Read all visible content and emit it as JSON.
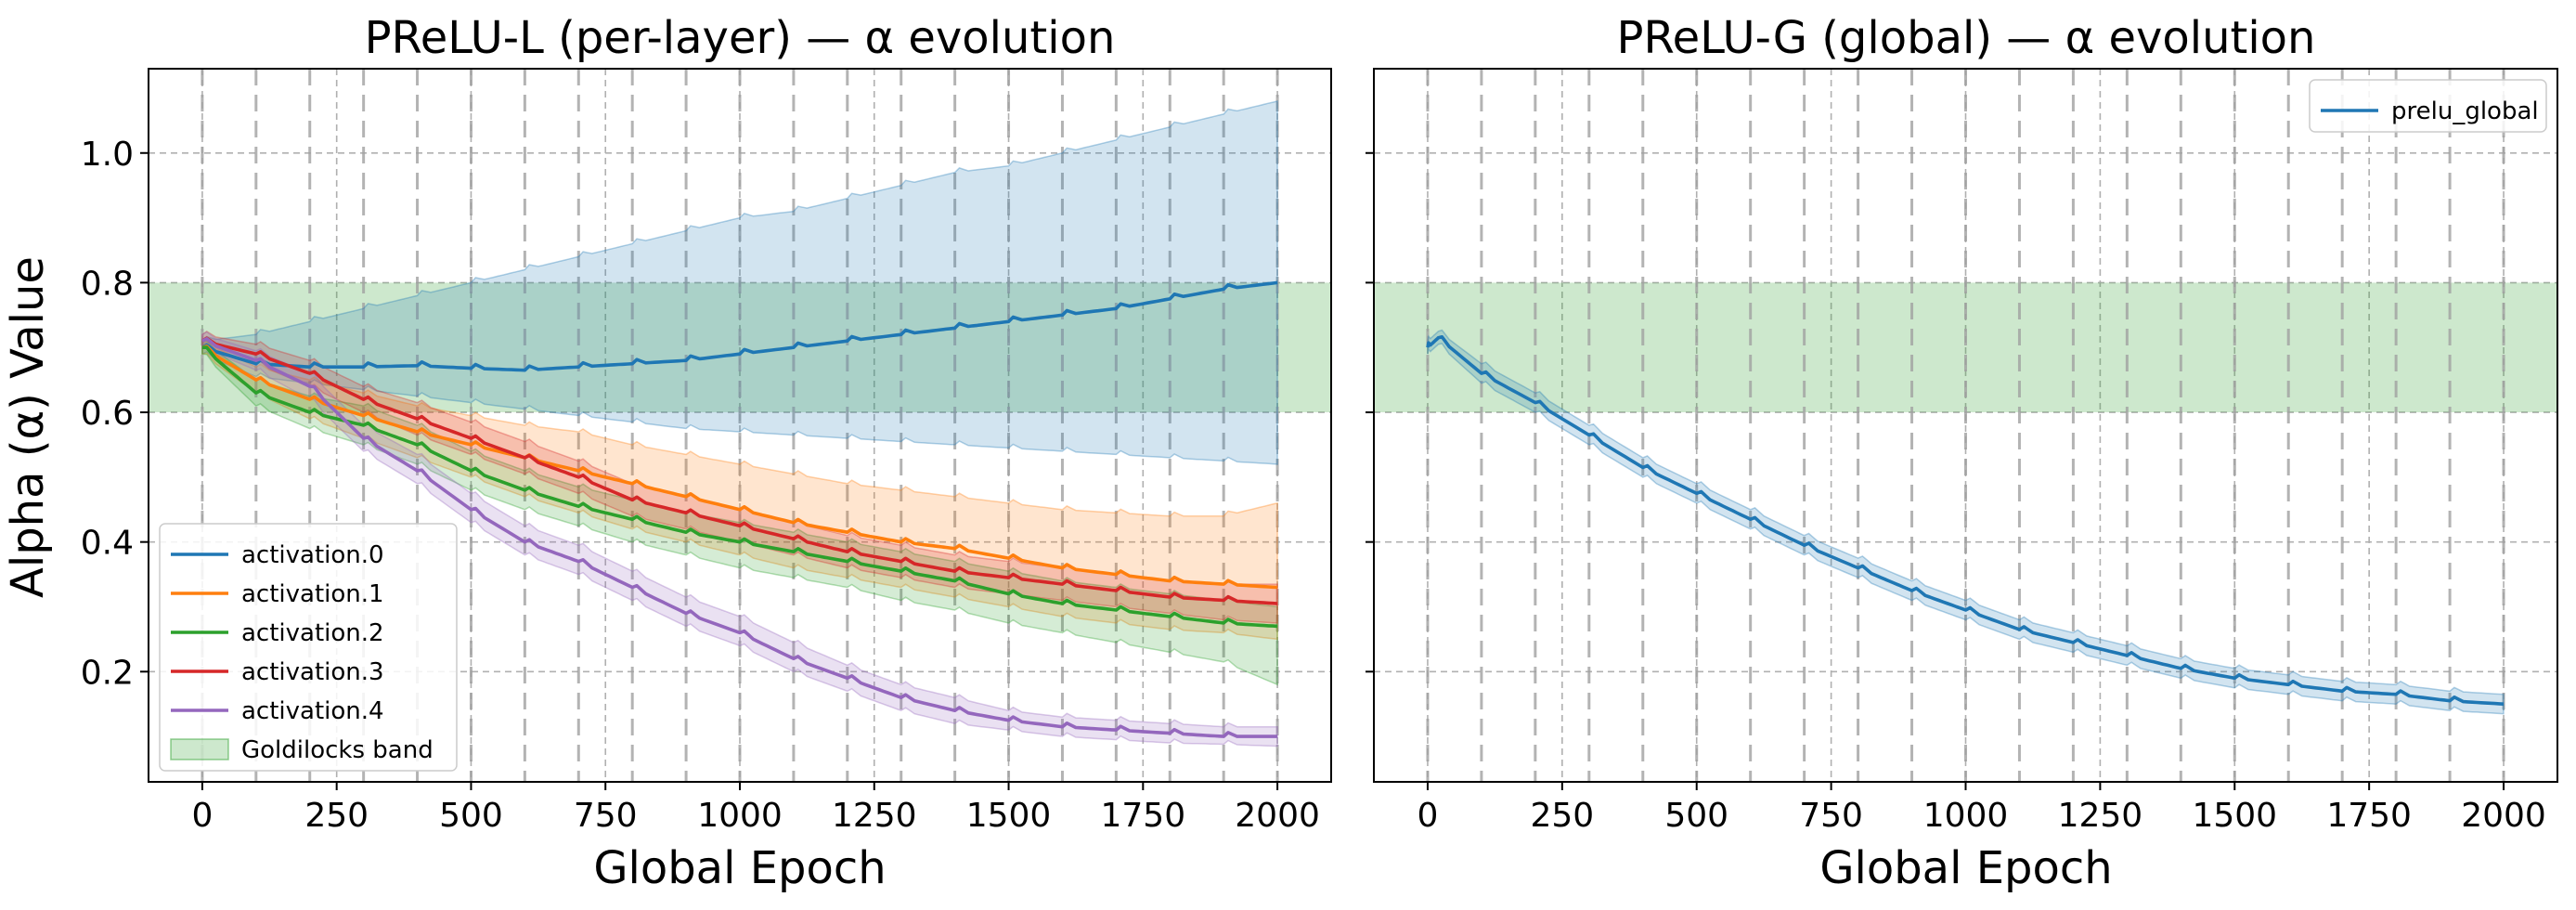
{
  "y_label": "Alpha (α) Value",
  "colors": {
    "activation.0": "#1f77b4",
    "activation.1": "#ff7f0e",
    "activation.2": "#2ca02c",
    "activation.3": "#d62728",
    "activation.4": "#9467bd",
    "band": "#2ca02c"
  },
  "chart_data": [
    {
      "type": "line",
      "title": "PReLU-L (per-layer) — α evolution",
      "xlabel": "Global Epoch",
      "ylabel": "Alpha (α) Value",
      "xlim": [
        -100,
        2100
      ],
      "ylim": [
        0.03,
        1.13
      ],
      "xticks": [
        0,
        250,
        500,
        750,
        1000,
        1250,
        1500,
        1750,
        2000
      ],
      "yticks": [
        0.2,
        0.4,
        0.6,
        0.8,
        1.0
      ],
      "ytick_labels": [
        "0.2",
        "0.4",
        "0.6",
        "0.8",
        "1.0"
      ],
      "grid": true,
      "legend_position": "lower-left",
      "legend": [
        "activation.0",
        "activation.1",
        "activation.2",
        "activation.3",
        "activation.4",
        "Goldilocks band"
      ],
      "goldilocks_band": [
        0.6,
        0.8
      ],
      "stage_boundaries": [
        0,
        100,
        200,
        300,
        400,
        500,
        600,
        700,
        800,
        900,
        1000,
        1100,
        1200,
        1300,
        1400,
        1500,
        1600,
        1700,
        1800,
        1900,
        2000
      ],
      "series": [
        {
          "name": "activation.0",
          "x": [
            0,
            100,
            200,
            300,
            400,
            500,
            600,
            700,
            800,
            900,
            1000,
            1100,
            1200,
            1300,
            1400,
            1500,
            1600,
            1700,
            1800,
            1900,
            2000
          ],
          "values": [
            0.7,
            0.675,
            0.67,
            0.67,
            0.672,
            0.668,
            0.665,
            0.67,
            0.675,
            0.68,
            0.69,
            0.7,
            0.71,
            0.72,
            0.73,
            0.74,
            0.75,
            0.76,
            0.775,
            0.79,
            0.8
          ],
          "lower": [
            0.69,
            0.655,
            0.645,
            0.635,
            0.625,
            0.615,
            0.605,
            0.595,
            0.585,
            0.575,
            0.57,
            0.565,
            0.56,
            0.555,
            0.55,
            0.545,
            0.54,
            0.535,
            0.53,
            0.525,
            0.52
          ],
          "upper": [
            0.71,
            0.72,
            0.74,
            0.76,
            0.78,
            0.8,
            0.82,
            0.84,
            0.86,
            0.88,
            0.9,
            0.91,
            0.93,
            0.95,
            0.97,
            0.98,
            1.0,
            1.02,
            1.04,
            1.06,
            1.08
          ]
        },
        {
          "name": "activation.1",
          "x": [
            0,
            100,
            200,
            300,
            400,
            500,
            600,
            700,
            800,
            900,
            1000,
            1100,
            1200,
            1300,
            1400,
            1500,
            1600,
            1700,
            1800,
            1900,
            2000
          ],
          "values": [
            0.7,
            0.65,
            0.62,
            0.595,
            0.57,
            0.55,
            0.53,
            0.51,
            0.49,
            0.47,
            0.45,
            0.43,
            0.415,
            0.4,
            0.39,
            0.375,
            0.36,
            0.35,
            0.34,
            0.335,
            0.33
          ],
          "lower": [
            0.69,
            0.63,
            0.59,
            0.56,
            0.53,
            0.5,
            0.47,
            0.445,
            0.42,
            0.4,
            0.38,
            0.36,
            0.345,
            0.33,
            0.315,
            0.3,
            0.285,
            0.275,
            0.265,
            0.26,
            0.25
          ],
          "upper": [
            0.71,
            0.67,
            0.65,
            0.63,
            0.61,
            0.595,
            0.58,
            0.57,
            0.55,
            0.535,
            0.52,
            0.505,
            0.49,
            0.48,
            0.47,
            0.46,
            0.45,
            0.445,
            0.44,
            0.44,
            0.46
          ]
        },
        {
          "name": "activation.2",
          "x": [
            0,
            100,
            200,
            300,
            400,
            500,
            600,
            700,
            800,
            900,
            1000,
            1100,
            1200,
            1300,
            1400,
            1500,
            1600,
            1700,
            1800,
            1900,
            2000
          ],
          "values": [
            0.7,
            0.63,
            0.6,
            0.58,
            0.55,
            0.51,
            0.48,
            0.455,
            0.435,
            0.415,
            0.4,
            0.385,
            0.37,
            0.355,
            0.34,
            0.32,
            0.305,
            0.295,
            0.285,
            0.275,
            0.27
          ],
          "lower": [
            0.69,
            0.61,
            0.575,
            0.55,
            0.52,
            0.48,
            0.45,
            0.425,
            0.4,
            0.38,
            0.36,
            0.345,
            0.33,
            0.31,
            0.295,
            0.275,
            0.26,
            0.245,
            0.23,
            0.215,
            0.18
          ],
          "upper": [
            0.71,
            0.65,
            0.625,
            0.61,
            0.58,
            0.54,
            0.51,
            0.485,
            0.465,
            0.445,
            0.43,
            0.415,
            0.4,
            0.385,
            0.37,
            0.355,
            0.34,
            0.33,
            0.32,
            0.31,
            0.3
          ]
        },
        {
          "name": "activation.3",
          "x": [
            0,
            100,
            200,
            300,
            400,
            500,
            600,
            700,
            800,
            900,
            1000,
            1100,
            1200,
            1300,
            1400,
            1500,
            1600,
            1700,
            1800,
            1900,
            2000
          ],
          "values": [
            0.71,
            0.69,
            0.66,
            0.62,
            0.59,
            0.56,
            0.53,
            0.5,
            0.465,
            0.445,
            0.425,
            0.405,
            0.385,
            0.37,
            0.355,
            0.345,
            0.335,
            0.325,
            0.315,
            0.31,
            0.305
          ],
          "lower": [
            0.7,
            0.675,
            0.64,
            0.6,
            0.565,
            0.535,
            0.505,
            0.475,
            0.44,
            0.42,
            0.4,
            0.38,
            0.36,
            0.345,
            0.33,
            0.32,
            0.31,
            0.3,
            0.29,
            0.28,
            0.275
          ],
          "upper": [
            0.72,
            0.705,
            0.68,
            0.64,
            0.615,
            0.585,
            0.555,
            0.525,
            0.49,
            0.47,
            0.45,
            0.43,
            0.41,
            0.395,
            0.38,
            0.37,
            0.36,
            0.35,
            0.34,
            0.335,
            0.335
          ]
        },
        {
          "name": "activation.4",
          "x": [
            0,
            100,
            200,
            300,
            400,
            500,
            600,
            700,
            800,
            900,
            1000,
            1100,
            1200,
            1300,
            1400,
            1500,
            1600,
            1700,
            1800,
            1900,
            2000
          ],
          "values": [
            0.71,
            0.68,
            0.64,
            0.56,
            0.51,
            0.45,
            0.4,
            0.37,
            0.33,
            0.29,
            0.26,
            0.22,
            0.19,
            0.16,
            0.14,
            0.125,
            0.115,
            0.11,
            0.105,
            0.1,
            0.1
          ],
          "lower": [
            0.7,
            0.665,
            0.62,
            0.54,
            0.49,
            0.43,
            0.38,
            0.35,
            0.31,
            0.27,
            0.24,
            0.2,
            0.17,
            0.14,
            0.12,
            0.11,
            0.1,
            0.095,
            0.09,
            0.088,
            0.085
          ],
          "upper": [
            0.72,
            0.695,
            0.66,
            0.58,
            0.535,
            0.475,
            0.425,
            0.395,
            0.355,
            0.315,
            0.285,
            0.245,
            0.21,
            0.18,
            0.16,
            0.14,
            0.13,
            0.125,
            0.12,
            0.115,
            0.115
          ]
        }
      ]
    },
    {
      "type": "line",
      "title": "PReLU-G (global) — α evolution",
      "xlabel": "Global Epoch",
      "ylabel": "",
      "xlim": [
        -100,
        2100
      ],
      "ylim": [
        0.03,
        1.13
      ],
      "xticks": [
        0,
        250,
        500,
        750,
        1000,
        1250,
        1500,
        1750,
        2000
      ],
      "yticks": [
        0.2,
        0.4,
        0.6,
        0.8,
        1.0
      ],
      "ytick_labels": [],
      "grid": true,
      "legend_position": "top-right",
      "legend": [
        "prelu_global"
      ],
      "goldilocks_band": [
        0.6,
        0.8
      ],
      "stage_boundaries": [
        0,
        100,
        200,
        300,
        400,
        500,
        600,
        700,
        800,
        900,
        1000,
        1100,
        1200,
        1300,
        1400,
        1500,
        1600,
        1700,
        1800,
        1900,
        2000
      ],
      "series": [
        {
          "name": "prelu_global",
          "x": [
            0,
            20,
            100,
            200,
            300,
            400,
            500,
            600,
            700,
            800,
            900,
            1000,
            1100,
            1200,
            1300,
            1400,
            1500,
            1600,
            1700,
            1800,
            1900,
            2000
          ],
          "values": [
            0.7,
            0.715,
            0.66,
            0.615,
            0.565,
            0.515,
            0.475,
            0.435,
            0.395,
            0.36,
            0.325,
            0.295,
            0.265,
            0.245,
            0.225,
            0.205,
            0.19,
            0.18,
            0.17,
            0.165,
            0.155,
            0.15
          ],
          "lower": [
            0.69,
            0.705,
            0.645,
            0.6,
            0.55,
            0.5,
            0.46,
            0.42,
            0.38,
            0.345,
            0.31,
            0.28,
            0.25,
            0.23,
            0.21,
            0.19,
            0.175,
            0.165,
            0.155,
            0.15,
            0.14,
            0.135
          ],
          "upper": [
            0.71,
            0.725,
            0.675,
            0.63,
            0.58,
            0.53,
            0.49,
            0.45,
            0.41,
            0.375,
            0.34,
            0.31,
            0.28,
            0.26,
            0.24,
            0.22,
            0.205,
            0.195,
            0.185,
            0.18,
            0.17,
            0.165
          ]
        }
      ]
    }
  ]
}
